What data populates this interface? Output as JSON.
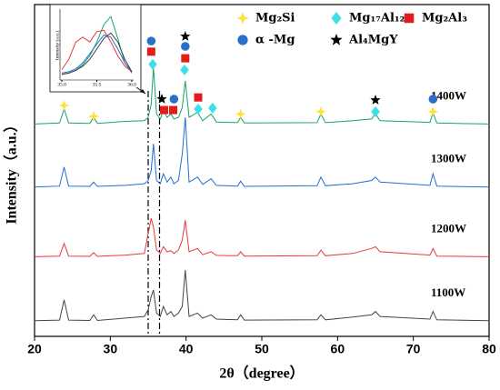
{
  "chart_data": [
    {
      "type": "line",
      "xlabel": "2θ（degree）",
      "ylabel": "Intensity（a.u.）",
      "xlim": [
        20,
        80
      ],
      "xticks": [
        20,
        30,
        40,
        50,
        60,
        70,
        80
      ],
      "ylim": [
        0,
        100
      ],
      "yticks": [],
      "x": [
        20,
        23.3,
        23.9,
        24.5,
        27.3,
        27.8,
        28.3,
        32,
        34.5,
        35.0,
        35.4,
        35.7,
        36.1,
        36.6,
        37.0,
        37.5,
        38.0,
        38.4,
        39.0,
        39.5,
        39.9,
        40.4,
        41.5,
        42.2,
        43.3,
        44,
        46.8,
        47.2,
        47.7,
        57.3,
        57.8,
        58.4,
        62,
        64.5,
        65.0,
        65.6,
        72.2,
        72.6,
        73.1,
        80
      ],
      "series": [
        {
          "name": "1400W",
          "color": "#1aa06c",
          "values": [
            64,
            64.3,
            68.5,
            64.3,
            64.2,
            66,
            64.2,
            64.8,
            65,
            66,
            70,
            81,
            67,
            65.5,
            68,
            66,
            67,
            65.5,
            66,
            69,
            77,
            66,
            67.5,
            65,
            67,
            64.6,
            64.4,
            66,
            64.3,
            64.4,
            67,
            64.4,
            65,
            65.5,
            67,
            65,
            64.5,
            67.5,
            64.3,
            64
          ]
        },
        {
          "name": "1300W",
          "color": "#1f6fd1",
          "values": [
            45,
            45.3,
            51,
            45.3,
            45.2,
            46.5,
            45.2,
            45.5,
            46,
            47,
            50,
            58,
            47,
            46,
            49,
            46.5,
            48,
            46,
            47,
            55,
            66,
            46.5,
            48,
            45.8,
            47.5,
            45.5,
            45.3,
            46.8,
            45.2,
            45.4,
            48,
            45.4,
            46,
            47,
            48,
            46.5,
            45.5,
            49,
            45.3,
            45
          ]
        },
        {
          "name": "1200W",
          "color": "#e8383d",
          "values": [
            24,
            24.2,
            28,
            24.2,
            24.1,
            25.2,
            24.1,
            24.5,
            25,
            31,
            35.6,
            33,
            26,
            25,
            27,
            25.5,
            25.8,
            25,
            26,
            29,
            35,
            25.5,
            26.5,
            24.6,
            25.5,
            24.4,
            24.3,
            25.5,
            24.2,
            24.3,
            26,
            24.3,
            25,
            26.5,
            27,
            25.5,
            24.5,
            26.5,
            24.2,
            24
          ]
        },
        {
          "name": "1100W",
          "color": "#444444",
          "values": [
            4.7,
            4.9,
            11,
            4.9,
            4.8,
            6.5,
            4.8,
            5.5,
            6,
            8,
            12,
            14,
            7,
            6,
            9,
            6.5,
            7.5,
            6,
            7,
            9,
            20,
            6,
            7,
            5.5,
            6.5,
            5.2,
            5,
            6.5,
            4.9,
            5,
            6.5,
            5,
            5.8,
            6.5,
            7.5,
            6,
            5.2,
            7.5,
            5,
            4.7
          ]
        }
      ],
      "reference_lines": [
        35.0,
        36.5
      ],
      "legend": "top-right",
      "phases": [
        {
          "name": "Mg₂Si",
          "shape": "star4",
          "color": "#ffe033",
          "positions": [
            [
              23.9,
              69.6
            ],
            [
              27.8,
              66.3
            ],
            [
              47.2,
              67
            ],
            [
              57.8,
              67.7
            ],
            [
              72.6,
              67.7
            ]
          ]
        },
        {
          "name": "Mg₁₇Al₁₂",
          "shape": "diamond",
          "color": "#3ee0e8",
          "positions": [
            [
              35.6,
              82
            ],
            [
              39.8,
              80.3
            ],
            [
              41.6,
              68.5
            ],
            [
              43.5,
              68.8
            ],
            [
              65.0,
              67.7
            ]
          ]
        },
        {
          "name": "Mg₂Al₃",
          "shape": "square",
          "color": "#e21b1b",
          "positions": [
            [
              35.4,
              85.8
            ],
            [
              39.9,
              83.8
            ],
            [
              37.1,
              68.2
            ],
            [
              38.3,
              68.2
            ],
            [
              41.6,
              72
            ]
          ]
        },
        {
          "name": "α -Mg",
          "shape": "circle",
          "color": "#2a6fc7",
          "positions": [
            [
              35.4,
              89
            ],
            [
              39.9,
              87.4
            ],
            [
              38.4,
              71.5
            ],
            [
              72.6,
              71.5
            ]
          ]
        },
        {
          "name": "Al₄MgY",
          "shape": "star5",
          "color": "#000000",
          "positions": [
            [
              36.8,
              71.5
            ],
            [
              39.9,
              90.4
            ],
            [
              65.0,
              71.2
            ]
          ]
        }
      ]
    },
    {
      "type": "line",
      "ylabel": "Intensity (a.u.)",
      "xlim": [
        35.0,
        36.0
      ],
      "xticks": [
        {
          "value": 35.0,
          "label": "35.0"
        },
        {
          "value": 35.5,
          "label": "35.5"
        },
        {
          "value": 36.0,
          "label": "36.0"
        }
      ],
      "ylim": [
        0,
        100
      ],
      "yticks": [],
      "x": [
        35.0,
        35.1,
        35.2,
        35.3,
        35.4,
        35.5,
        35.6,
        35.7,
        35.8,
        35.9,
        36.0
      ],
      "series": [
        {
          "color": "#1aa06c",
          "values": [
            8,
            10,
            14,
            22,
            35,
            55,
            80,
            92,
            60,
            25,
            10
          ]
        },
        {
          "color": "#1f6fd1",
          "values": [
            10,
            12,
            16,
            25,
            38,
            52,
            65,
            62,
            45,
            25,
            12
          ]
        },
        {
          "color": "#e8383d",
          "values": [
            15,
            30,
            55,
            62,
            55,
            70,
            72,
            55,
            35,
            20,
            12
          ]
        },
        {
          "color": "#444444",
          "values": [
            8,
            10,
            14,
            20,
            30,
            45,
            60,
            68,
            55,
            30,
            12
          ]
        }
      ]
    }
  ]
}
